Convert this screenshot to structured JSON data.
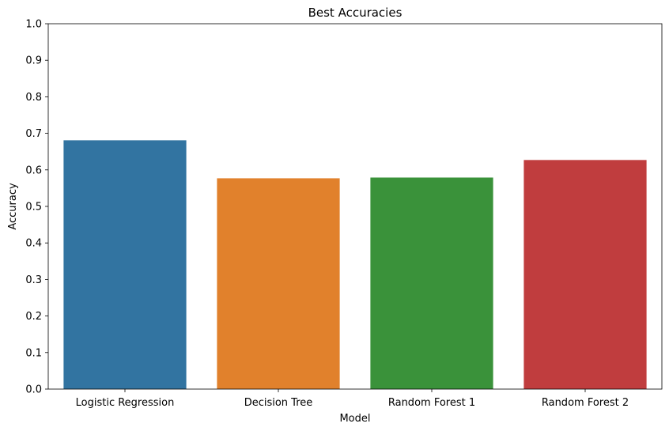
{
  "chart_data": {
    "type": "bar",
    "title": "Best Accuracies",
    "xlabel": "Model",
    "ylabel": "Accuracy",
    "categories": [
      "Logistic Regression",
      "Decision Tree",
      "Random Forest 1",
      "Random Forest 2"
    ],
    "values": [
      0.681,
      0.577,
      0.579,
      0.627
    ],
    "colors": [
      "#3274a1",
      "#e1812c",
      "#3a923a",
      "#c03d3e"
    ],
    "ylim": [
      0,
      1.0
    ],
    "yticks": [
      "0.0",
      "0.1",
      "0.2",
      "0.3",
      "0.4",
      "0.5",
      "0.6",
      "0.7",
      "0.8",
      "0.9",
      "1.0"
    ],
    "grid": false,
    "legend": "none"
  }
}
